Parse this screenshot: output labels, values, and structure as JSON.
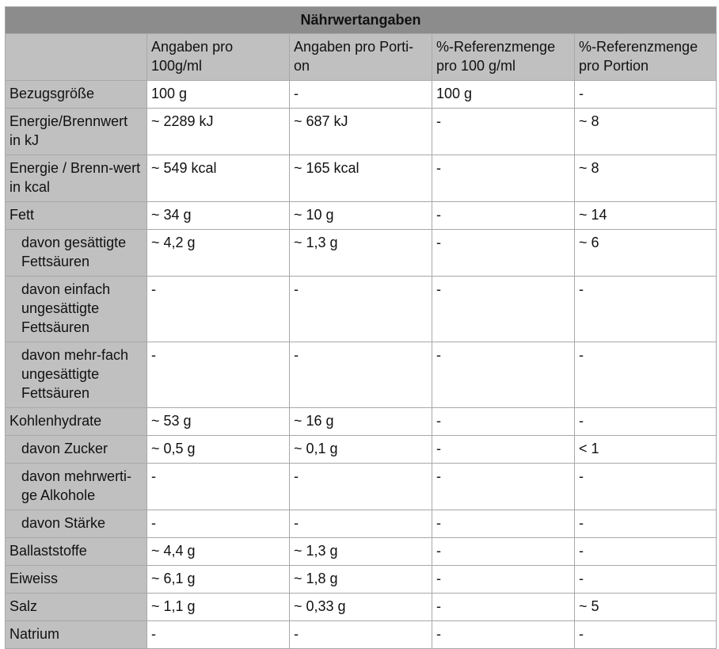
{
  "title": "Nährwertangaben",
  "columns": [
    "",
    "Angaben pro 100g/ml",
    "Angaben pro Porti-on",
    "%-Referenzmenge pro 100 g/ml",
    "%-Referenzmenge pro Portion"
  ],
  "rows": [
    {
      "label": "Bezugsgröße",
      "indent": false,
      "values": [
        "100 g",
        "-",
        "100 g",
        "-"
      ]
    },
    {
      "label": "Energie/Brennwert in kJ",
      "indent": false,
      "values": [
        "~ 2289 kJ",
        "~ 687 kJ",
        "-",
        "~ 8"
      ]
    },
    {
      "label": "Energie / Brenn-wert in kcal",
      "indent": false,
      "values": [
        "~ 549 kcal",
        "~ 165 kcal",
        "-",
        "~ 8"
      ]
    },
    {
      "label": "Fett",
      "indent": false,
      "values": [
        "~ 34 g",
        "~ 10 g",
        "-",
        "~ 14"
      ]
    },
    {
      "label": "davon gesättigte Fettsäuren",
      "indent": true,
      "values": [
        "~ 4,2 g",
        "~ 1,3 g",
        "-",
        "~ 6"
      ]
    },
    {
      "label": "davon einfach ungesättigte Fettsäuren",
      "indent": true,
      "values": [
        "-",
        "-",
        "-",
        "-"
      ]
    },
    {
      "label": "davon mehr-fach ungesättigte Fettsäuren",
      "indent": true,
      "values": [
        "-",
        "-",
        "-",
        "-"
      ]
    },
    {
      "label": "Kohlenhydrate",
      "indent": false,
      "values": [
        "~ 53 g",
        "~ 16 g",
        "-",
        "-"
      ]
    },
    {
      "label": "davon Zucker",
      "indent": true,
      "values": [
        "~ 0,5 g",
        "~ 0,1 g",
        "-",
        "< 1"
      ]
    },
    {
      "label": "davon mehrwerti-ge Alkohole",
      "indent": true,
      "values": [
        "-",
        "-",
        "-",
        "-"
      ]
    },
    {
      "label": "davon Stärke",
      "indent": true,
      "values": [
        "-",
        "-",
        "-",
        "-"
      ]
    },
    {
      "label": "Ballaststoffe",
      "indent": false,
      "values": [
        "~ 4,4 g",
        "~ 1,3 g",
        "-",
        "-"
      ]
    },
    {
      "label": "Eiweiss",
      "indent": false,
      "values": [
        "~ 6,1 g",
        "~ 1,8 g",
        "-",
        "-"
      ]
    },
    {
      "label": "Salz",
      "indent": false,
      "values": [
        "~ 1,1 g",
        "~ 0,33 g",
        "-",
        "~ 5"
      ]
    },
    {
      "label": "Natrium",
      "indent": false,
      "values": [
        "-",
        "-",
        "-",
        "-"
      ]
    }
  ]
}
